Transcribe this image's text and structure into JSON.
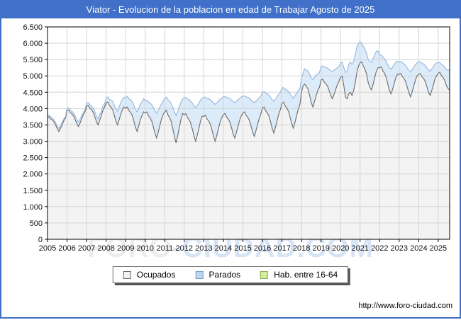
{
  "window": {
    "title": "Viator - Evolucion de la poblacion en edad de Trabajar Agosto de 2025",
    "title_bg": "#4070C8",
    "border_color": "#4070C8"
  },
  "watermark": {
    "part1": "FORO",
    "part2": "-CIUDAD.COM"
  },
  "footer": {
    "url": "http://www.foro-ciudad.com"
  },
  "legend": {
    "items": [
      {
        "label": "Ocupados",
        "fill": "#f2f2f2",
        "border": "#6b6b6b"
      },
      {
        "label": "Parados",
        "fill": "#bcd6ee",
        "border": "#7a9ec6"
      },
      {
        "label": "Hab. entre 16-64",
        "fill": "#d2ee96",
        "border": "#90ab58"
      }
    ]
  },
  "chart_data": {
    "type": "area",
    "title": "Viator - Evolucion de la poblacion en edad de Trabajar Agosto de 2025",
    "x_unit": "month",
    "x_start": "2005-01",
    "x_end": "2025-08",
    "ylim": [
      0,
      6500
    ],
    "grid": true,
    "grid_color": "#d4d4d4",
    "y_tick_step": 500,
    "y_tick_labels": [
      "0",
      "500",
      "1.000",
      "1.500",
      "2.000",
      "2.500",
      "3.000",
      "3.500",
      "4.000",
      "4.500",
      "5.000",
      "5.500",
      "6.000",
      "6.500"
    ],
    "x_tick_years": [
      "2005",
      "2006",
      "2007",
      "2008",
      "2009",
      "2010",
      "2011",
      "2012",
      "2013",
      "2014",
      "2015",
      "2016",
      "2017",
      "2018",
      "2019",
      "2020",
      "2021",
      "2022",
      "2023",
      "2024",
      "2025"
    ],
    "legend_position": "bottom-center",
    "series": [
      {
        "name": "Ocupados",
        "stroke": "#6b6b6b",
        "fill": "#f3f3f3",
        "stacked_on": null,
        "values": [
          3730,
          3750,
          3680,
          3650,
          3590,
          3490,
          3380,
          3300,
          3400,
          3510,
          3630,
          3710,
          3930,
          3950,
          3880,
          3840,
          3780,
          3660,
          3540,
          3450,
          3560,
          3690,
          3810,
          3900,
          4070,
          4100,
          4010,
          3970,
          3890,
          3760,
          3610,
          3500,
          3640,
          3790,
          3940,
          4040,
          4170,
          4200,
          4100,
          4040,
          3960,
          3800,
          3620,
          3500,
          3660,
          3830,
          3960,
          4050,
          4010,
          4050,
          3940,
          3880,
          3790,
          3620,
          3430,
          3300,
          3470,
          3660,
          3780,
          3900,
          3860,
          3900,
          3780,
          3720,
          3620,
          3440,
          3240,
          3100,
          3280,
          3480,
          3680,
          3820,
          3900,
          3950,
          3800,
          3725,
          3600,
          3375,
          3125,
          2950,
          3175,
          3425,
          3675,
          3850,
          3810,
          3850,
          3720,
          3660,
          3550,
          3360,
          3150,
          3000,
          3190,
          3400,
          3620,
          3770,
          3760,
          3800,
          3680,
          3620,
          3520,
          3340,
          3140,
          3000,
          3180,
          3380,
          3580,
          3720,
          3810,
          3850,
          3740,
          3680,
          3590,
          3420,
          3230,
          3100,
          3270,
          3460,
          3640,
          3780,
          3860,
          3900,
          3790,
          3730,
          3640,
          3470,
          3280,
          3150,
          3320,
          3510,
          3690,
          3830,
          4010,
          4050,
          3930,
          3870,
          3770,
          3590,
          3390,
          3250,
          3430,
          3630,
          3830,
          3970,
          4160,
          4200,
          4080,
          4020,
          3920,
          3740,
          3540,
          3400,
          3580,
          3780,
          3980,
          4120,
          4500,
          4700,
          4750,
          4680,
          4600,
          4400,
          4180,
          4050,
          4220,
          4400,
          4550,
          4650,
          4870,
          4900,
          4810,
          4760,
          4690,
          4550,
          4400,
          4300,
          4430,
          4580,
          4730,
          4840,
          4950,
          4990,
          4700,
          4350,
          4300,
          4450,
          4500,
          4400,
          4550,
          4800,
          5100,
          5300,
          5400,
          5430,
          5300,
          5200,
          5050,
          4800,
          4650,
          4570,
          4750,
          4950,
          5150,
          5250,
          5250,
          5280,
          5150,
          5080,
          4950,
          4750,
          4550,
          4450,
          4600,
          4780,
          4950,
          5050,
          5050,
          5080,
          4980,
          4920,
          4820,
          4650,
          4480,
          4360,
          4520,
          4700,
          4880,
          5000,
          5050,
          5070,
          4970,
          4920,
          4830,
          4670,
          4500,
          4400,
          4550,
          4720,
          4900,
          5010,
          5080,
          5110,
          5000,
          4950,
          4860,
          4700,
          4620,
          4560
        ]
      },
      {
        "name": "Parados",
        "stroke": "#9cbbde",
        "fill": "#dcebf9",
        "stacked_on": "Ocupados",
        "values": [
          50,
          50,
          50,
          60,
          60,
          70,
          90,
          90,
          80,
          70,
          60,
          50,
          70,
          70,
          80,
          80,
          90,
          110,
          120,
          140,
          120,
          100,
          80,
          70,
          100,
          90,
          110,
          110,
          130,
          150,
          170,
          190,
          170,
          140,
          120,
          100,
          150,
          160,
          190,
          220,
          260,
          310,
          370,
          420,
          390,
          350,
          320,
          300,
          320,
          330,
          360,
          390,
          420,
          480,
          550,
          600,
          540,
          470,
          420,
          400,
          380,
          360,
          420,
          450,
          500,
          590,
          690,
          760,
          670,
          570,
          470,
          400,
          420,
          400,
          470,
          500,
          550,
          650,
          760,
          840,
          740,
          630,
          520,
          450,
          520,
          490,
          570,
          610,
          680,
          800,
          930,
          1030,
          910,
          770,
          640,
          550,
          580,
          550,
          630,
          680,
          750,
          880,
          1030,
          1130,
          1000,
          850,
          710,
          600,
          550,
          520,
          600,
          650,
          720,
          840,
          980,
          1080,
          950,
          810,
          670,
          580,
          520,
          490,
          570,
          610,
          680,
          800,
          930,
          1030,
          910,
          770,
          640,
          550,
          490,
          470,
          540,
          580,
          640,
          760,
          880,
          970,
          860,
          730,
          610,
          520,
          470,
          440,
          510,
          550,
          610,
          720,
          830,
          920,
          810,
          690,
          570,
          490,
          420,
          400,
          470,
          500,
          550,
          650,
          760,
          840,
          740,
          630,
          520,
          450,
          420,
          400,
          470,
          500,
          550,
          650,
          760,
          840,
          740,
          630,
          520,
          450,
          450,
          430,
          550,
          750,
          850,
          900,
          920,
          950,
          900,
          850,
          800,
          700,
          650,
          560,
          600,
          620,
          640,
          700,
          800,
          850,
          780,
          700,
          600,
          520,
          380,
          360,
          420,
          450,
          500,
          590,
          690,
          760,
          670,
          570,
          470,
          400,
          380,
          360,
          420,
          450,
          500,
          590,
          690,
          760,
          670,
          570,
          470,
          400,
          380,
          360,
          420,
          440,
          490,
          580,
          680,
          740,
          660,
          560,
          460,
          390,
          320,
          300,
          350,
          370,
          410,
          480,
          560,
          620
        ]
      }
    ]
  }
}
